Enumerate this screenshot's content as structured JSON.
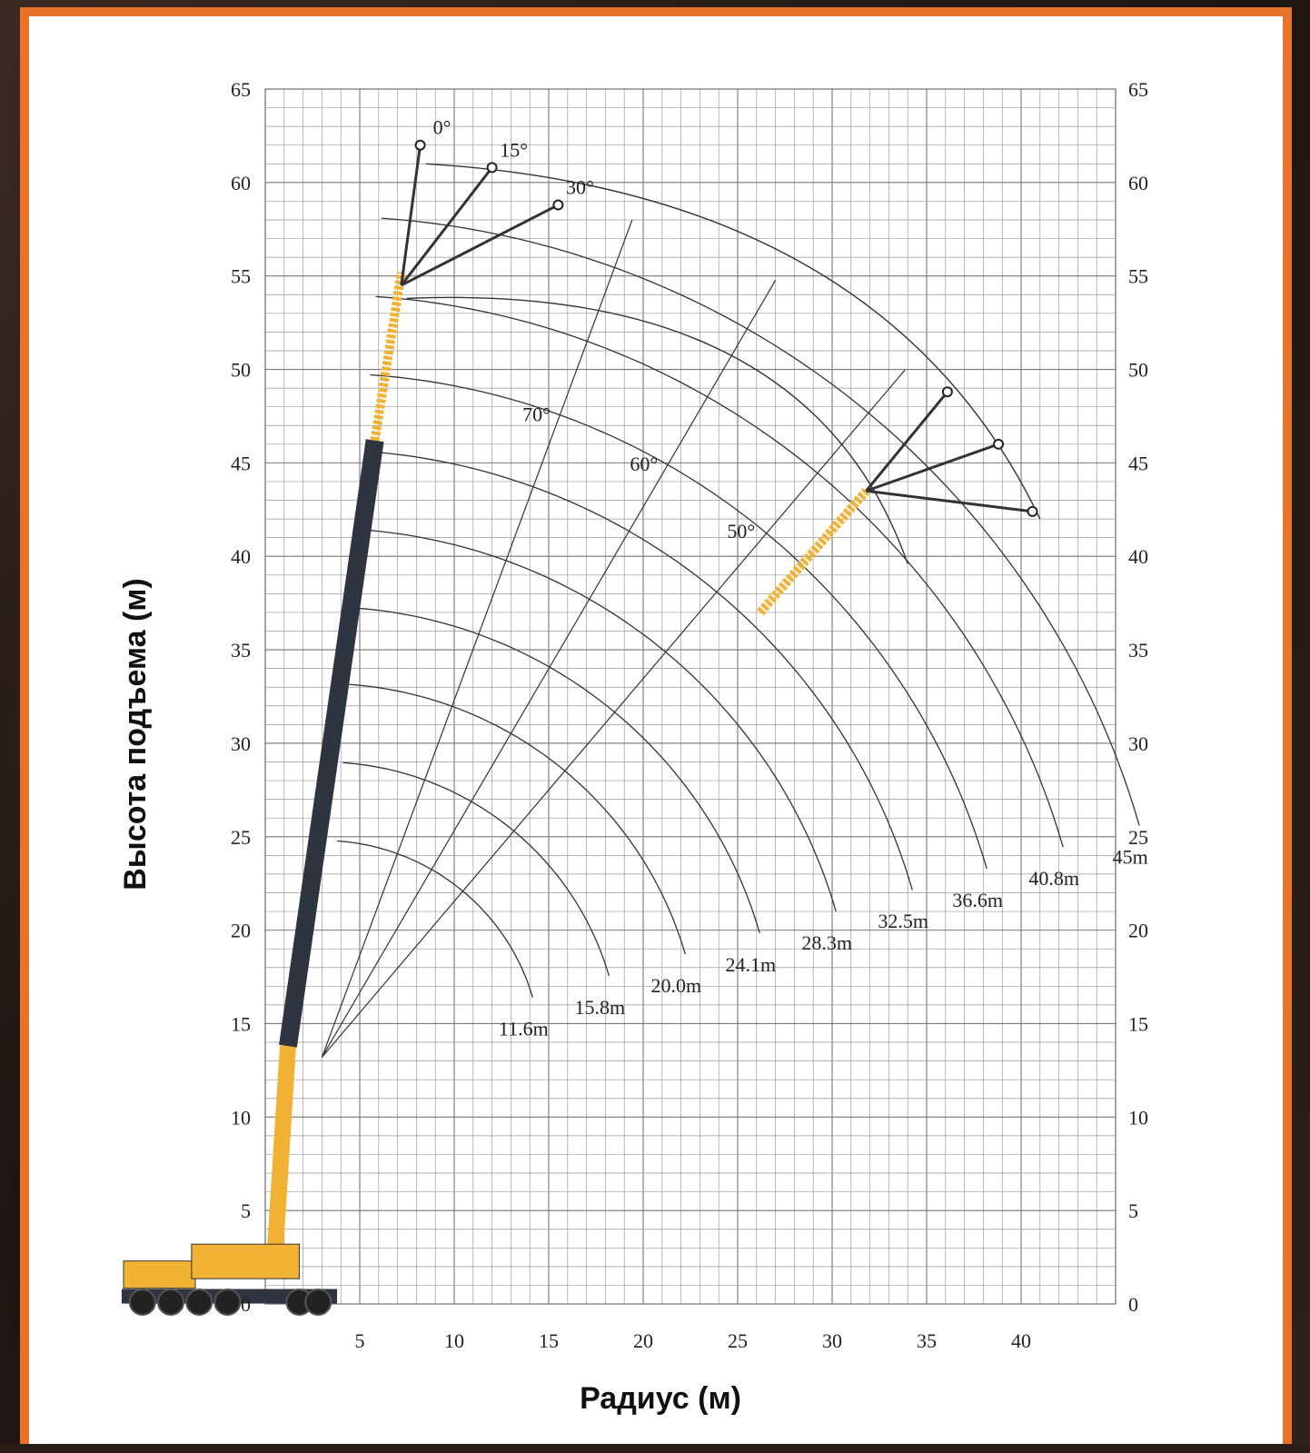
{
  "chart_data": {
    "type": "line",
    "title": "",
    "xlabel": "Радиус (м)",
    "ylabel": "Высота подъема (м)",
    "xlim": [
      0,
      45
    ],
    "ylim": [
      0,
      65
    ],
    "x_ticks": [
      "5",
      "10",
      "15",
      "20",
      "25",
      "30",
      "35",
      "40"
    ],
    "y_ticks": [
      "0",
      "5",
      "10",
      "15",
      "20",
      "25",
      "30",
      "35",
      "40",
      "45",
      "50",
      "55",
      "60",
      "65"
    ],
    "grid": true,
    "boom_radius_curves": [
      {
        "label": "11.6m",
        "length": 11.6
      },
      {
        "label": "15.8m",
        "length": 15.8
      },
      {
        "label": "20.0m",
        "length": 20.0
      },
      {
        "label": "24.1m",
        "length": 24.1
      },
      {
        "label": "28.3m",
        "length": 28.3
      },
      {
        "label": "32.5m",
        "length": 32.5
      },
      {
        "label": "36.6m",
        "length": 36.6
      },
      {
        "label": "40.8m",
        "length": 40.8
      },
      {
        "label": "45m",
        "length": 45
      }
    ],
    "boom_angle_lines": [
      {
        "label": "70°",
        "angle": 70
      },
      {
        "label": "60°",
        "angle": 60
      },
      {
        "label": "50°",
        "angle": 50
      }
    ],
    "jib_offset_angles": [
      {
        "label": "0°",
        "x": 8.2,
        "y": 62
      },
      {
        "label": "15°",
        "x": 12.0,
        "y": 60.8
      },
      {
        "label": "30°",
        "x": 15.5,
        "y": 58.8
      }
    ],
    "jib_positions_at_50deg": [
      {
        "offset": 0,
        "tip_x": 36.1,
        "tip_y": 48.8
      },
      {
        "offset": 15,
        "tip_x": 38.8,
        "tip_y": 46.0
      },
      {
        "offset": 30,
        "tip_x": 40.6,
        "tip_y": 42.4
      }
    ],
    "colors": {
      "main_boom": "#2e3540",
      "base_section": "#f2b233",
      "jib": "#f2b233",
      "frame": "#e8732a"
    }
  }
}
